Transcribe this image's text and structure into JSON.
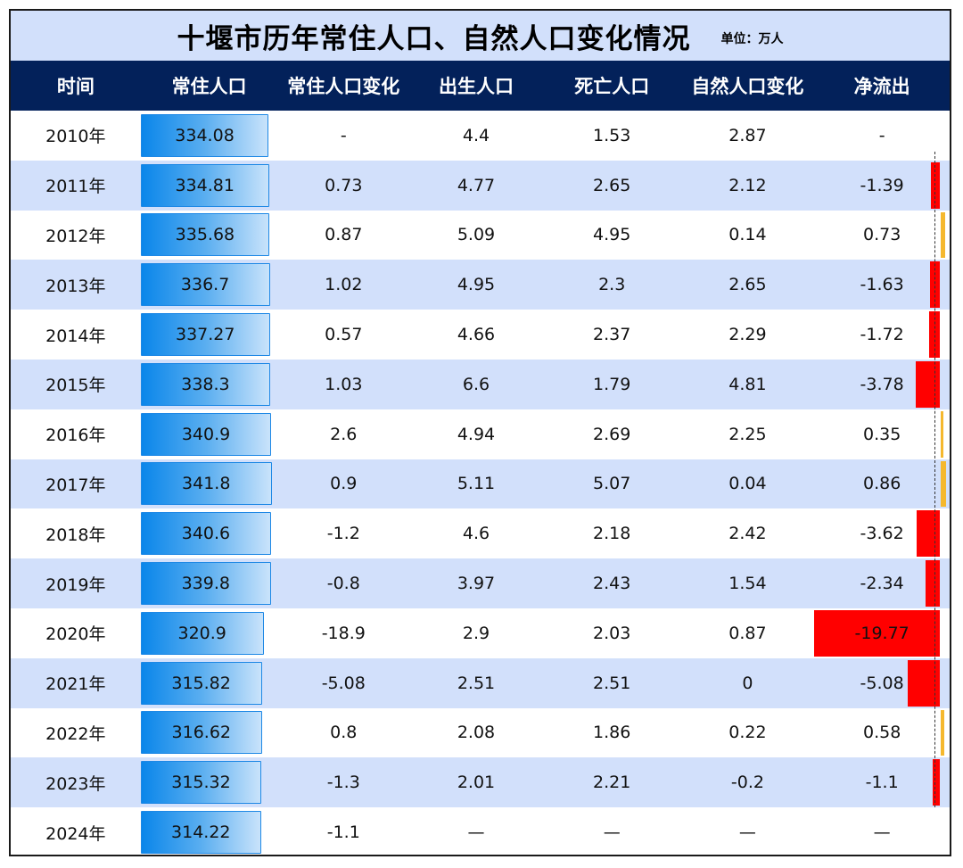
{
  "title": "十堰市历年常住人口、自然人口变化情况",
  "unit": "单位：万人",
  "columns": [
    "时间",
    "常住人口",
    "常住人口变化",
    "出生人口",
    "死亡人口",
    "自然人口变化",
    "净流出"
  ],
  "colors": {
    "title_bg": "#d2e0fb",
    "header_bg": "#03215a",
    "alt_row_bg": "#d2e0fb",
    "pop_bar_start": "#0a86ea",
    "pop_bar_end": "#c9e3fb",
    "net_negative": "#ff0000",
    "net_positive": "#f5b82e"
  },
  "rows": [
    {
      "year": "2010年",
      "pop": "334.08",
      "pop_change": "-",
      "births": "4.4",
      "deaths": "1.53",
      "natural": "2.87",
      "net": "-"
    },
    {
      "year": "2011年",
      "pop": "334.81",
      "pop_change": "0.73",
      "births": "4.77",
      "deaths": "2.65",
      "natural": "2.12",
      "net": "-1.39"
    },
    {
      "year": "2012年",
      "pop": "335.68",
      "pop_change": "0.87",
      "births": "5.09",
      "deaths": "4.95",
      "natural": "0.14",
      "net": "0.73"
    },
    {
      "year": "2013年",
      "pop": "336.7",
      "pop_change": "1.02",
      "births": "4.95",
      "deaths": "2.3",
      "natural": "2.65",
      "net": "-1.63"
    },
    {
      "year": "2014年",
      "pop": "337.27",
      "pop_change": "0.57",
      "births": "4.66",
      "deaths": "2.37",
      "natural": "2.29",
      "net": "-1.72"
    },
    {
      "year": "2015年",
      "pop": "338.3",
      "pop_change": "1.03",
      "births": "6.6",
      "deaths": "1.79",
      "natural": "4.81",
      "net": "-3.78"
    },
    {
      "year": "2016年",
      "pop": "340.9",
      "pop_change": "2.6",
      "births": "4.94",
      "deaths": "2.69",
      "natural": "2.25",
      "net": "0.35"
    },
    {
      "year": "2017年",
      "pop": "341.8",
      "pop_change": "0.9",
      "births": "5.11",
      "deaths": "5.07",
      "natural": "0.04",
      "net": "0.86"
    },
    {
      "year": "2018年",
      "pop": "340.6",
      "pop_change": "-1.2",
      "births": "4.6",
      "deaths": "2.18",
      "natural": "2.42",
      "net": "-3.62"
    },
    {
      "year": "2019年",
      "pop": "339.8",
      "pop_change": "-0.8",
      "births": "3.97",
      "deaths": "2.43",
      "natural": "1.54",
      "net": "-2.34"
    },
    {
      "year": "2020年",
      "pop": "320.9",
      "pop_change": "-18.9",
      "births": "2.9",
      "deaths": "2.03",
      "natural": "0.87",
      "net": "-19.77"
    },
    {
      "year": "2021年",
      "pop": "315.82",
      "pop_change": "-5.08",
      "births": "2.51",
      "deaths": "2.51",
      "natural": "0",
      "net": "-5.08"
    },
    {
      "year": "2022年",
      "pop": "316.62",
      "pop_change": "0.8",
      "births": "2.08",
      "deaths": "1.86",
      "natural": "0.22",
      "net": "0.58"
    },
    {
      "year": "2023年",
      "pop": "315.32",
      "pop_change": "-1.3",
      "births": "2.01",
      "deaths": "2.21",
      "natural": "-0.2",
      "net": "-1.1"
    },
    {
      "year": "2024年",
      "pop": "314.22",
      "pop_change": "-1.1",
      "births": "—",
      "deaths": "—",
      "natural": "—",
      "net": "—"
    }
  ],
  "chart_data": {
    "type": "table",
    "title": "十堰市历年常住人口、自然人口变化情况",
    "subtitle": "单位：万人",
    "columns": [
      "时间",
      "常住人口",
      "常住人口变化",
      "出生人口",
      "死亡人口",
      "自然人口变化",
      "净流出"
    ],
    "categories": [
      "2010年",
      "2011年",
      "2012年",
      "2013年",
      "2014年",
      "2015年",
      "2016年",
      "2017年",
      "2018年",
      "2019年",
      "2020年",
      "2021年",
      "2022年",
      "2023年",
      "2024年"
    ],
    "series": [
      {
        "name": "常住人口",
        "values": [
          334.08,
          334.81,
          335.68,
          336.7,
          337.27,
          338.3,
          340.9,
          341.8,
          340.6,
          339.8,
          320.9,
          315.82,
          316.62,
          315.32,
          314.22
        ],
        "render": "data-bar"
      },
      {
        "name": "常住人口变化",
        "values": [
          null,
          0.73,
          0.87,
          1.02,
          0.57,
          1.03,
          2.6,
          0.9,
          -1.2,
          -0.8,
          -18.9,
          -5.08,
          0.8,
          -1.3,
          -1.1
        ]
      },
      {
        "name": "出生人口",
        "values": [
          4.4,
          4.77,
          5.09,
          4.95,
          4.66,
          6.6,
          4.94,
          5.11,
          4.6,
          3.97,
          2.9,
          2.51,
          2.08,
          2.01,
          null
        ]
      },
      {
        "name": "死亡人口",
        "values": [
          1.53,
          2.65,
          4.95,
          2.3,
          2.37,
          1.79,
          2.69,
          5.07,
          2.18,
          2.43,
          2.03,
          2.51,
          1.86,
          2.21,
          null
        ]
      },
      {
        "name": "自然人口变化",
        "values": [
          2.87,
          2.12,
          0.14,
          2.65,
          2.29,
          4.81,
          2.25,
          0.04,
          2.42,
          1.54,
          0.87,
          0,
          0.22,
          -0.2,
          null
        ]
      },
      {
        "name": "净流出",
        "values": [
          null,
          -1.39,
          0.73,
          -1.63,
          -1.72,
          -3.78,
          0.35,
          0.86,
          -3.62,
          -2.34,
          -19.77,
          -5.08,
          0.58,
          -1.1,
          null
        ],
        "render": "diverging-data-bar"
      }
    ]
  }
}
